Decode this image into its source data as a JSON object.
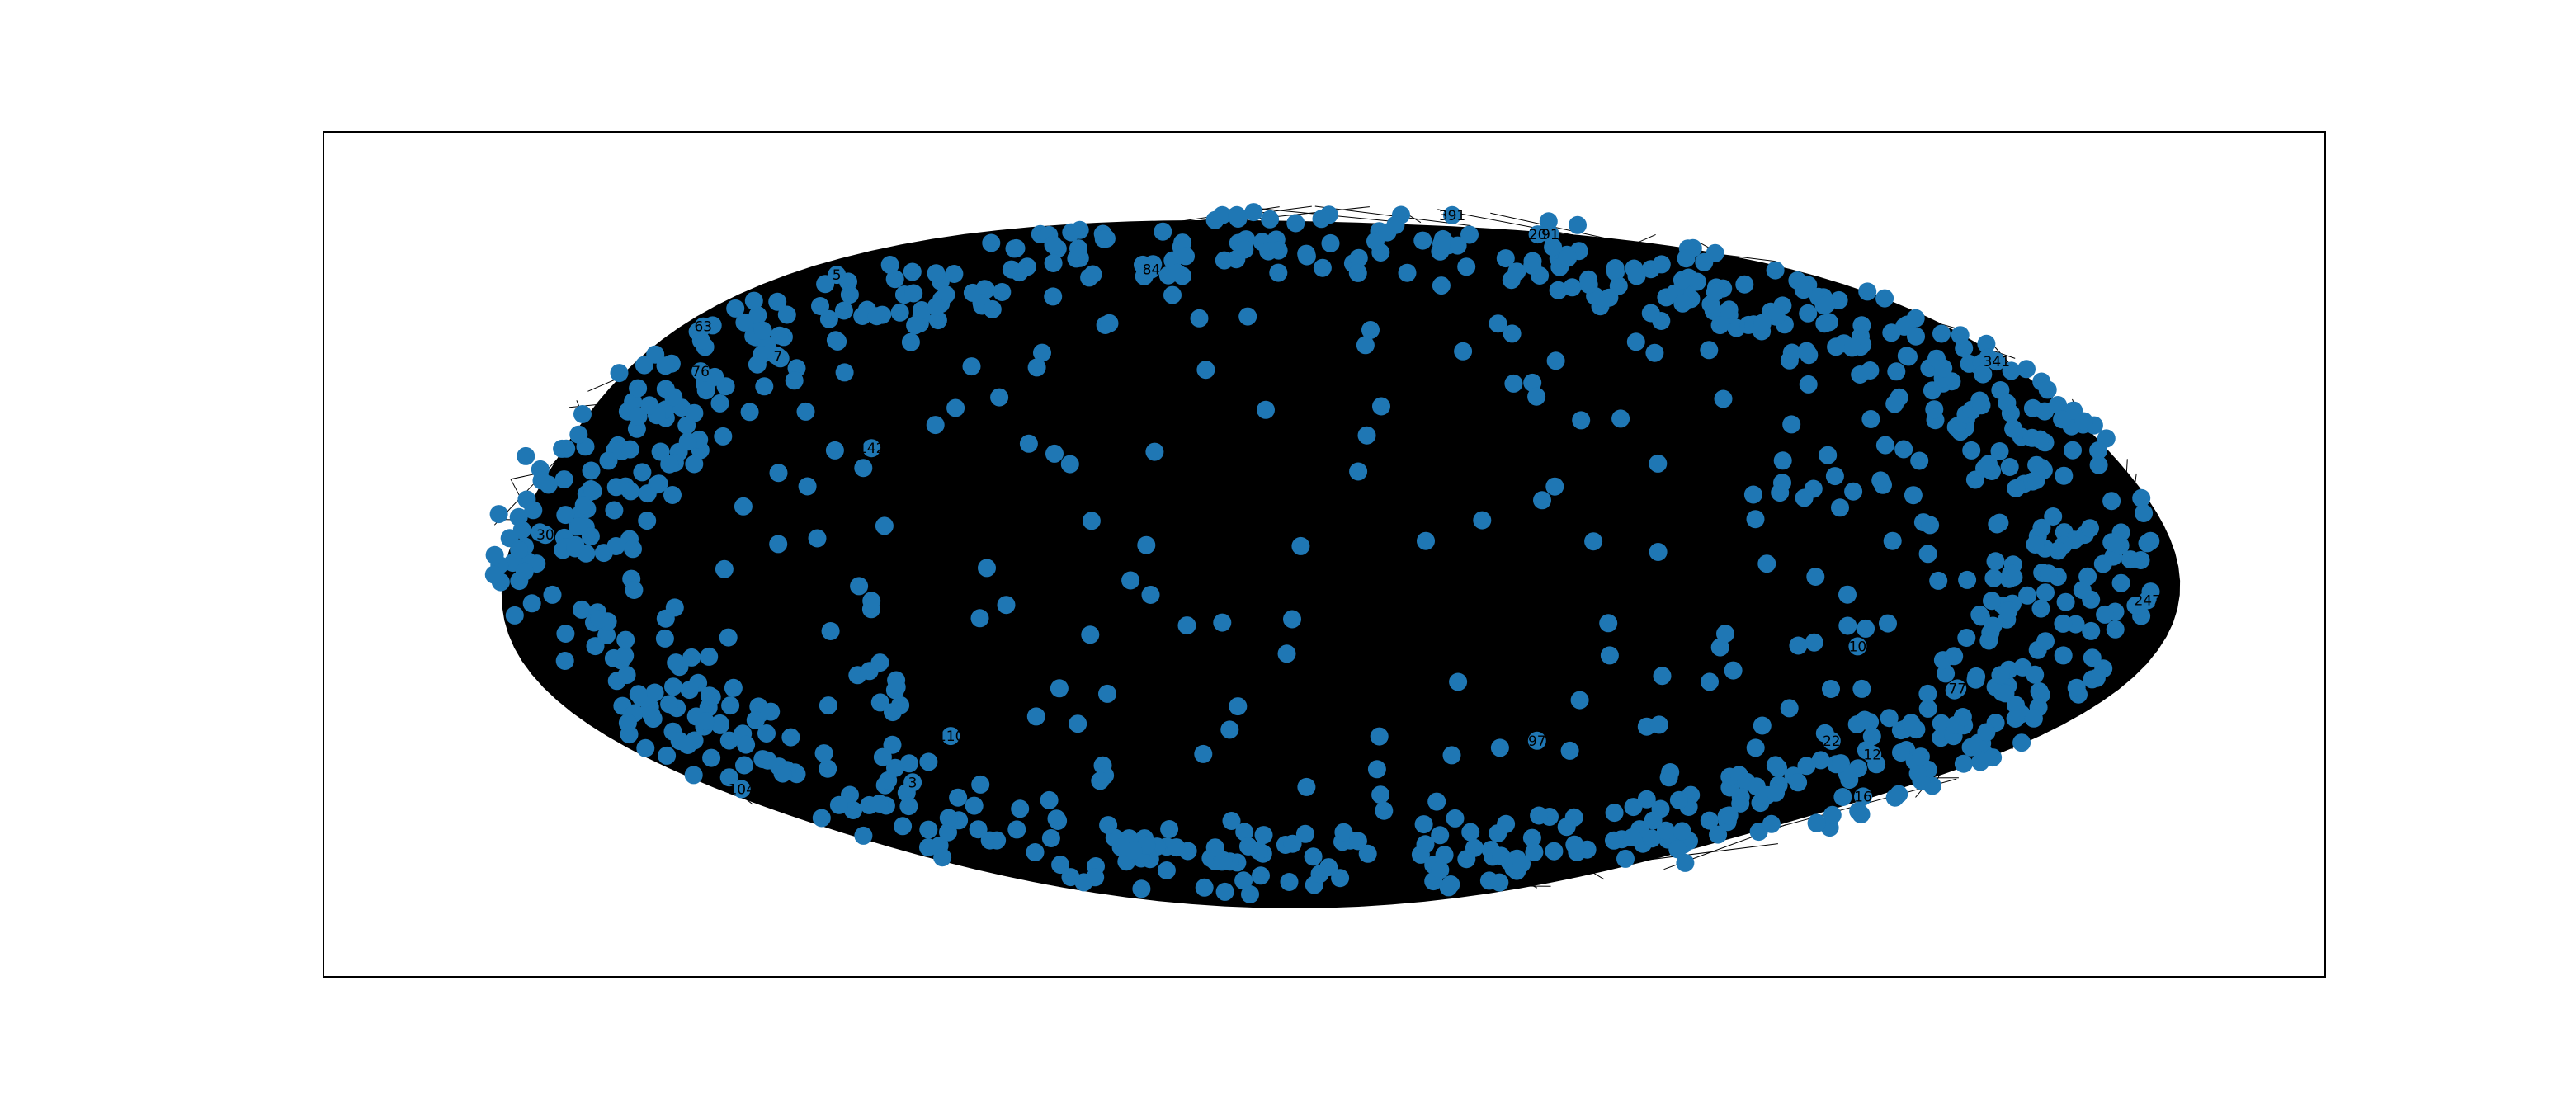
{
  "figure": {
    "background": "#ffffff",
    "frame_color": "#000000",
    "node_color": "#1f77b4",
    "edge_color": "#000000",
    "label_color": "#000000"
  },
  "graph": {
    "type": "network",
    "layout": "spring",
    "node_count_visible": "approx. 1000",
    "edges_drawn": "dense, fills the ellipse",
    "visible_node_labels": [
      "3",
      "5",
      "7",
      "10",
      "12",
      "16",
      "20",
      "22",
      "30",
      "63",
      "76",
      "77",
      "84",
      "91",
      "97",
      "104",
      "110",
      "142",
      "247",
      "341",
      "391"
    ]
  }
}
